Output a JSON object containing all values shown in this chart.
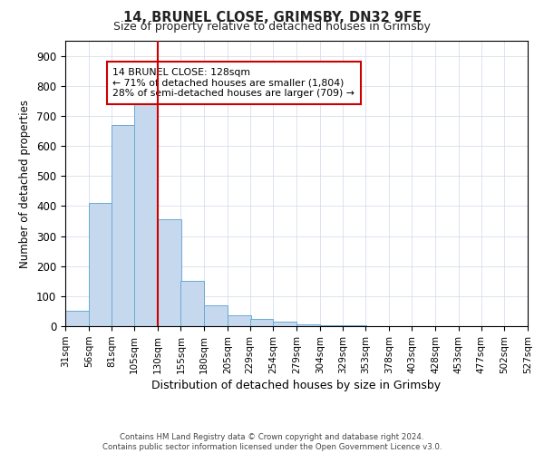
{
  "title1": "14, BRUNEL CLOSE, GRIMSBY, DN32 9FE",
  "title2": "Size of property relative to detached houses in Grimsby",
  "xlabel": "Distribution of detached houses by size in Grimsby",
  "ylabel": "Number of detached properties",
  "bar_left_edges": [
    31,
    56,
    81,
    105,
    130,
    155,
    180,
    205,
    229,
    254,
    279,
    304,
    329,
    353,
    378,
    403,
    428,
    453,
    477,
    502
  ],
  "bar_heights": [
    50,
    410,
    670,
    750,
    355,
    150,
    70,
    35,
    25,
    15,
    5,
    3,
    2,
    1,
    0,
    1,
    0,
    0,
    0,
    1
  ],
  "bar_widths": [
    25,
    25,
    25,
    25,
    25,
    25,
    25,
    25,
    25,
    25,
    25,
    25,
    25,
    25,
    25,
    25,
    25,
    25,
    25,
    25
  ],
  "x_tick_labels": [
    "31sqm",
    "56sqm",
    "81sqm",
    "105sqm",
    "130sqm",
    "155sqm",
    "180sqm",
    "205sqm",
    "229sqm",
    "254sqm",
    "279sqm",
    "304sqm",
    "329sqm",
    "353sqm",
    "378sqm",
    "403sqm",
    "428sqm",
    "453sqm",
    "477sqm",
    "502sqm",
    "527sqm"
  ],
  "x_tick_positions": [
    31,
    56,
    81,
    105,
    130,
    155,
    180,
    205,
    229,
    254,
    279,
    304,
    329,
    353,
    378,
    403,
    428,
    453,
    477,
    502,
    527
  ],
  "property_line_x": 130,
  "property_line_color": "#cc0000",
  "bar_facecolor": "#c5d8ee",
  "bar_edgecolor": "#6aaad4",
  "ylim": [
    0,
    950
  ],
  "xlim": [
    31,
    527
  ],
  "yticks": [
    0,
    100,
    200,
    300,
    400,
    500,
    600,
    700,
    800,
    900
  ],
  "annotation_text": "14 BRUNEL CLOSE: 128sqm\n← 71% of detached houses are smaller (1,804)\n28% of semi-detached houses are larger (709) →",
  "annotation_box_color": "#ffffff",
  "annotation_box_edgecolor": "#cc0000",
  "footer_text": "Contains HM Land Registry data © Crown copyright and database right 2024.\nContains public sector information licensed under the Open Government Licence v3.0.",
  "grid_color": "#d0d8e8",
  "background_color": "#ffffff"
}
